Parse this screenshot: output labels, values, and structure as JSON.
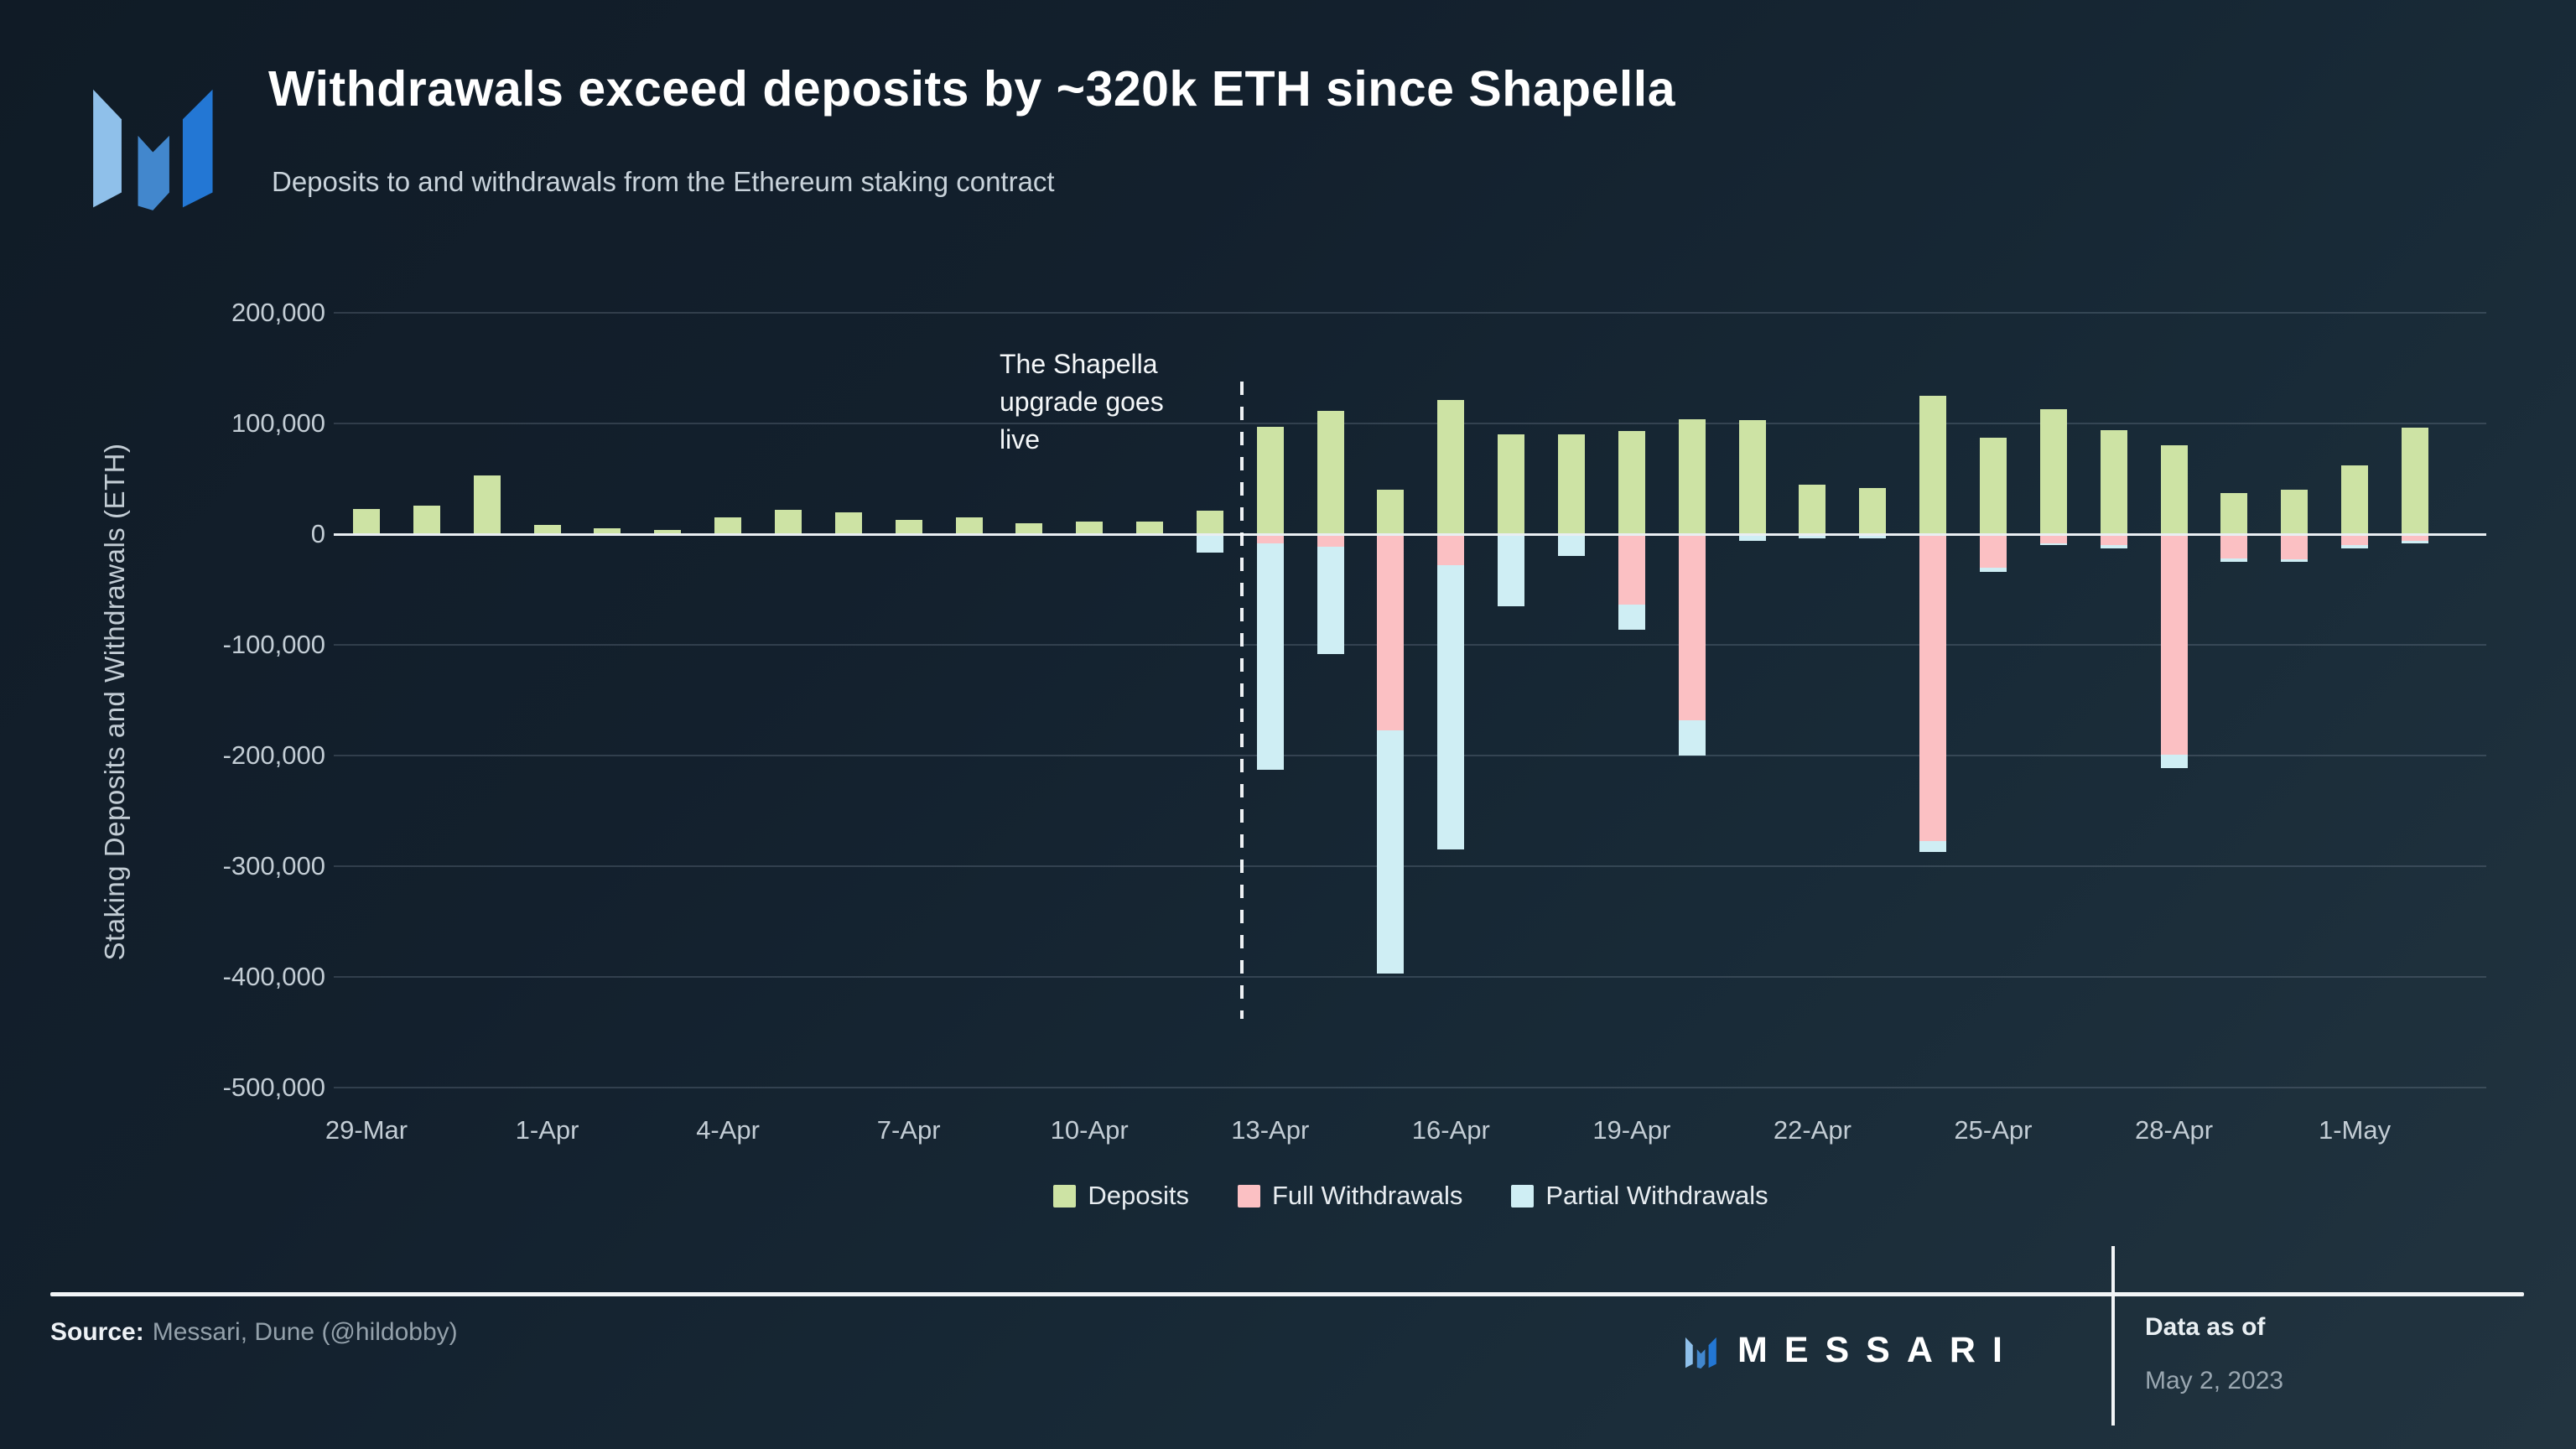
{
  "header": {
    "title": "Withdrawals exceed deposits by ~320k ETH since Shapella",
    "subtitle": "Deposits to and withdrawals from the Ethereum staking contract"
  },
  "annotation": {
    "line1": "The Shapella",
    "line2": "upgrade goes",
    "line3": "live"
  },
  "legend": [
    {
      "label": "Deposits",
      "color": "#cde3a4"
    },
    {
      "label": "Full Withdrawals",
      "color": "#fbc0c3"
    },
    {
      "label": "Partial Withdrawals",
      "color": "#cfeef4"
    }
  ],
  "footer": {
    "source_label": "Source:",
    "source_value": "Messari, Dune (@hildobby)",
    "brand": "MESSARI",
    "data_as_of_label": "Data as of",
    "data_as_of_value": "May 2, 2023"
  },
  "colors": {
    "deposits": "#cde3a4",
    "full_withdrawals": "#fbc0c3",
    "partial_withdrawals": "#cfeef4",
    "logo_left": "#8fc0ea",
    "logo_mid": "#4287cd",
    "logo_right": "#2377d4"
  },
  "chart_data": {
    "type": "bar",
    "stacked": true,
    "title": "Withdrawals exceed deposits by ~320k ETH since Shapella",
    "xlabel": "",
    "ylabel": "Staking Deposits and Withdrawals (ETH)",
    "ylim": [
      -500000,
      200000
    ],
    "ytick_step": 100000,
    "grid": true,
    "legend_position": "bottom",
    "event_line": {
      "label": "The Shapella upgrade goes live",
      "between": [
        "12-Apr",
        "13-Apr"
      ]
    },
    "categories": [
      "29-Mar",
      "30-Mar",
      "31-Mar",
      "1-Apr",
      "2-Apr",
      "3-Apr",
      "4-Apr",
      "5-Apr",
      "6-Apr",
      "7-Apr",
      "8-Apr",
      "9-Apr",
      "10-Apr",
      "11-Apr",
      "12-Apr",
      "13-Apr",
      "14-Apr",
      "15-Apr",
      "16-Apr",
      "17-Apr",
      "18-Apr",
      "19-Apr",
      "20-Apr",
      "21-Apr",
      "22-Apr",
      "23-Apr",
      "24-Apr",
      "25-Apr",
      "26-Apr",
      "27-Apr",
      "28-Apr",
      "29-Apr",
      "30-Apr",
      "1-May",
      "2-May"
    ],
    "x_tick_labels": [
      "29-Mar",
      "1-Apr",
      "4-Apr",
      "7-Apr",
      "10-Apr",
      "13-Apr",
      "16-Apr",
      "19-Apr",
      "22-Apr",
      "25-Apr",
      "28-Apr",
      "1-May"
    ],
    "series": [
      {
        "name": "Deposits",
        "color": "#cde3a4",
        "values": [
          23000,
          26000,
          53000,
          8000,
          5000,
          4000,
          15000,
          22000,
          20000,
          13000,
          15000,
          10000,
          11000,
          11000,
          21000,
          97000,
          111000,
          40000,
          121000,
          90000,
          90000,
          93000,
          104000,
          103000,
          45000,
          42000,
          125000,
          87000,
          113000,
          94000,
          80000,
          37000,
          40000,
          62000,
          96000
        ]
      },
      {
        "name": "Full Withdrawals",
        "color": "#fbc0c3",
        "values": [
          0,
          0,
          0,
          0,
          0,
          0,
          0,
          0,
          0,
          0,
          0,
          0,
          0,
          0,
          0,
          -8000,
          -11000,
          -177000,
          -28000,
          0,
          0,
          -64000,
          -168000,
          0,
          0,
          0,
          -277000,
          -30000,
          -8000,
          -10000,
          -199000,
          -22000,
          -23000,
          -10000,
          -6000
        ]
      },
      {
        "name": "Partial Withdrawals",
        "color": "#cfeef4",
        "values": [
          0,
          0,
          0,
          0,
          0,
          0,
          0,
          0,
          0,
          0,
          0,
          0,
          0,
          0,
          -17000,
          -205000,
          -97000,
          -220000,
          -257000,
          -65000,
          -20000,
          -22000,
          -32000,
          -6000,
          -4000,
          -4000,
          -10000,
          -4000,
          -2000,
          -3000,
          -12000,
          -3000,
          -2000,
          -3000,
          -2000
        ]
      }
    ]
  }
}
